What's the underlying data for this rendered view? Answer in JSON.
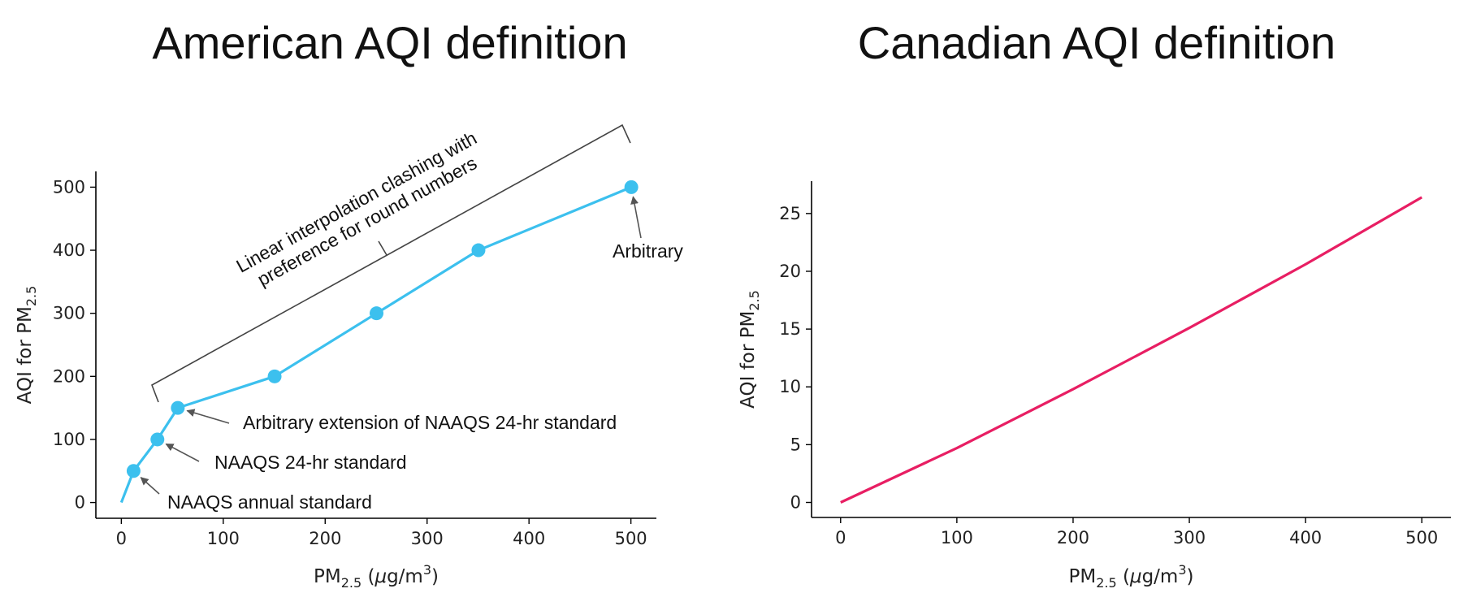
{
  "chart_data": [
    {
      "type": "line",
      "title": "American AQI definition",
      "xlabel": {
        "base": "PM",
        "sub": "2.5",
        "unit_pre": " (",
        "mu": "μ",
        "unit_mid": "g/m",
        "sup": "3",
        "unit_post": ")"
      },
      "ylabel": {
        "base": "AQI for PM",
        "sub": "2.5"
      },
      "xlim": [
        -25,
        525
      ],
      "ylim": [
        -25,
        525
      ],
      "xticks": [
        0,
        100,
        200,
        300,
        400,
        500
      ],
      "yticks": [
        0,
        100,
        200,
        300,
        400,
        500
      ],
      "line_color": "#3cc0ee",
      "series": [
        {
          "x": [
            0,
            12,
            35.4,
            55.4,
            150.4,
            250.4,
            350.4,
            500.4
          ],
          "y": [
            0,
            50,
            100,
            150,
            200,
            300,
            400,
            500
          ],
          "markers": [
            false,
            true,
            true,
            true,
            true,
            true,
            true,
            true
          ]
        }
      ],
      "annotations": {
        "annual": {
          "text": "NAAQS annual standard",
          "x": 12,
          "y": 50
        },
        "hr24": {
          "text": "NAAQS 24-hr standard",
          "x": 35.4,
          "y": 100
        },
        "extension": {
          "text": "Arbitrary extension of NAAQS 24-hr standard",
          "x": 55.4,
          "y": 150
        },
        "arbitrary": {
          "text": "Arbitrary",
          "x": 500.4,
          "y": 500
        },
        "bracket_line1": "Linear interpolation clashing with",
        "bracket_line2": "preference for round numbers"
      }
    },
    {
      "type": "line",
      "title": "Canadian AQI definition",
      "xlabel": {
        "base": "PM",
        "sub": "2.5",
        "unit_pre": " (",
        "mu": "μ",
        "unit_mid": "g/m",
        "sup": "3",
        "unit_post": ")"
      },
      "ylabel": {
        "base": "AQI for PM",
        "sub": "2.5"
      },
      "xlim": [
        -25,
        525
      ],
      "ylim": [
        -1.3,
        27.8
      ],
      "xticks": [
        0,
        100,
        200,
        300,
        400,
        500
      ],
      "yticks": [
        0,
        5,
        10,
        15,
        20,
        25
      ],
      "line_color": "#e81e63",
      "series": [
        {
          "x": [
            0,
            100,
            200,
            300,
            400,
            500
          ],
          "y": [
            0,
            4.7,
            9.8,
            15.1,
            20.6,
            26.4
          ]
        }
      ]
    }
  ]
}
